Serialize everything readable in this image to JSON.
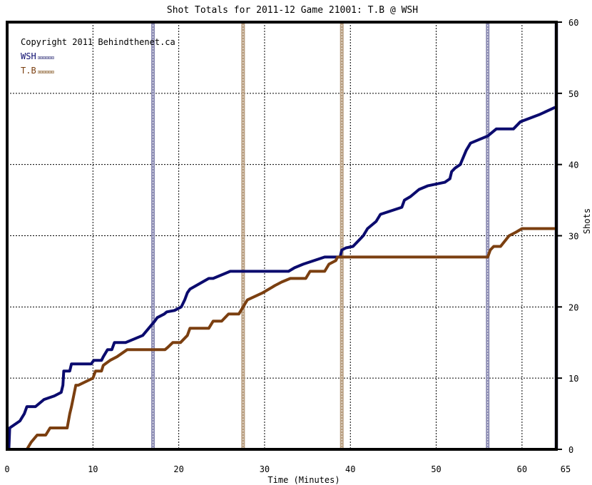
{
  "chart_data": {
    "type": "line",
    "title": "Shot Totals for 2011-12 Game 21001: T.B @ WSH",
    "xlabel": "Time (Minutes)",
    "ylabel": "Shots",
    "copyright": "Copyright 2011 Behindthenet.ca",
    "xlim": [
      0,
      64
    ],
    "ylim": [
      0,
      60
    ],
    "x_ticks": [
      0,
      10,
      20,
      30,
      40,
      50,
      60,
      65
    ],
    "x_tick_labels": [
      "0",
      "10",
      "20",
      "30",
      "40",
      "50",
      "60",
      "65"
    ],
    "y_ticks": [
      0,
      10,
      20,
      30,
      40,
      50,
      60
    ],
    "y_tick_labels": [
      "0",
      "10",
      "20",
      "30",
      "40",
      "50",
      "60"
    ],
    "grid": true,
    "legend_position": "top-left",
    "series": [
      {
        "name": "WSH",
        "color": "#0b0b6e",
        "goal_times": [
          17.0,
          56.0,
          64.0
        ],
        "points": [
          [
            0,
            0
          ],
          [
            0.2,
            0
          ],
          [
            0.3,
            3
          ],
          [
            1.5,
            4
          ],
          [
            2,
            5
          ],
          [
            2.3,
            6
          ],
          [
            3.3,
            6
          ],
          [
            4.3,
            7
          ],
          [
            5.5,
            7.5
          ],
          [
            6.3,
            8
          ],
          [
            6.5,
            9
          ],
          [
            6.6,
            11
          ],
          [
            7.3,
            11
          ],
          [
            7.5,
            12
          ],
          [
            9.8,
            12
          ],
          [
            10.1,
            12.5
          ],
          [
            11.0,
            12.5
          ],
          [
            11.2,
            13
          ],
          [
            11.7,
            14
          ],
          [
            12.2,
            14
          ],
          [
            12.5,
            15
          ],
          [
            13.8,
            15
          ],
          [
            15.8,
            16
          ],
          [
            16.5,
            17
          ],
          [
            17.2,
            18
          ],
          [
            17.5,
            18.5
          ],
          [
            18.3,
            19
          ],
          [
            18.6,
            19.3
          ],
          [
            19.5,
            19.5
          ],
          [
            20.3,
            20
          ],
          [
            20.7,
            21
          ],
          [
            21.0,
            22
          ],
          [
            21.3,
            22.5
          ],
          [
            23.5,
            24
          ],
          [
            24.0,
            24
          ],
          [
            26.0,
            25
          ],
          [
            27.0,
            25
          ],
          [
            27.8,
            25
          ],
          [
            32.8,
            25
          ],
          [
            33.5,
            25.5
          ],
          [
            34.5,
            26
          ],
          [
            37.0,
            27
          ],
          [
            38.8,
            27
          ],
          [
            39.0,
            28
          ],
          [
            39.5,
            28.3
          ],
          [
            40.3,
            28.5
          ],
          [
            41.5,
            30
          ],
          [
            42.0,
            31
          ],
          [
            43.0,
            32
          ],
          [
            43.5,
            33
          ],
          [
            46.0,
            34
          ],
          [
            46.3,
            35
          ],
          [
            47.0,
            35.5
          ],
          [
            48.0,
            36.5
          ],
          [
            49.0,
            37
          ],
          [
            51.0,
            37.5
          ],
          [
            51.6,
            38
          ],
          [
            51.8,
            39
          ],
          [
            52.2,
            39.5
          ],
          [
            52.8,
            40
          ],
          [
            53.5,
            42
          ],
          [
            54.0,
            43
          ],
          [
            55.0,
            43.5
          ],
          [
            56.0,
            44
          ],
          [
            57.0,
            45
          ],
          [
            59.0,
            45
          ],
          [
            59.8,
            46
          ],
          [
            62.0,
            47
          ],
          [
            63.8,
            48
          ],
          [
            64.0,
            48
          ]
        ]
      },
      {
        "name": "T.B",
        "color": "#7b3f10",
        "goal_times": [
          27.5,
          39.0
        ],
        "points": [
          [
            0,
            0
          ],
          [
            2.3,
            0
          ],
          [
            2.8,
            1
          ],
          [
            3.5,
            2
          ],
          [
            4.5,
            2
          ],
          [
            5.0,
            3
          ],
          [
            7.0,
            3
          ],
          [
            7.3,
            5
          ],
          [
            7.5,
            6
          ],
          [
            8.0,
            9
          ],
          [
            8.3,
            9
          ],
          [
            10.0,
            10
          ],
          [
            10.3,
            11
          ],
          [
            11.0,
            11
          ],
          [
            11.2,
            11.8
          ],
          [
            12.0,
            12.5
          ],
          [
            12.8,
            13
          ],
          [
            14.0,
            14
          ],
          [
            17.8,
            14
          ],
          [
            18.0,
            14
          ],
          [
            18.4,
            14
          ],
          [
            18.7,
            14.3
          ],
          [
            19.3,
            15
          ],
          [
            20.2,
            15
          ],
          [
            21.0,
            16
          ],
          [
            21.3,
            17
          ],
          [
            23.5,
            17
          ],
          [
            24.0,
            18
          ],
          [
            25.0,
            18
          ],
          [
            25.8,
            19
          ],
          [
            27.0,
            19
          ],
          [
            27.5,
            20
          ],
          [
            28.0,
            21
          ],
          [
            29.8,
            22
          ],
          [
            31.2,
            23
          ],
          [
            32.0,
            23.5
          ],
          [
            33.0,
            24
          ],
          [
            34.8,
            24
          ],
          [
            35.3,
            25
          ],
          [
            37.0,
            25
          ],
          [
            37.5,
            26
          ],
          [
            38.3,
            26.5
          ],
          [
            38.5,
            27
          ],
          [
            39.0,
            27
          ],
          [
            56.0,
            27
          ],
          [
            56.3,
            28
          ],
          [
            56.7,
            28.5
          ],
          [
            57.5,
            28.5
          ],
          [
            58.5,
            30
          ],
          [
            59.3,
            30.5
          ],
          [
            60.0,
            31
          ],
          [
            64.0,
            31
          ]
        ]
      }
    ]
  }
}
